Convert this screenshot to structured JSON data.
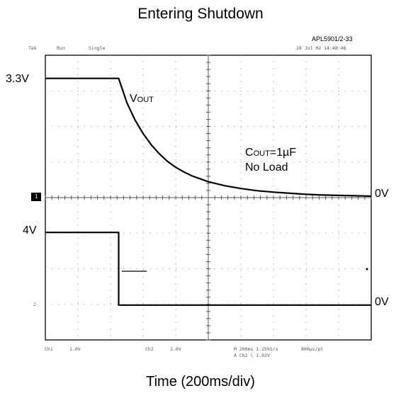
{
  "chart_data": {
    "type": "line",
    "title": "Entering Shutdown",
    "figure_id": "APL5901/2-33",
    "xlabel": "Time (200ms/div)",
    "x_unit": "ms",
    "x_per_div_ms": 200,
    "xlim": [
      0,
      2000
    ],
    "series": [
      {
        "name": "VOUT",
        "label_main": "V",
        "label_sub": "OUT",
        "level_label": "3.3V",
        "zero_label": "0V",
        "x": [
          0,
          200,
          450,
          450,
          500,
          550,
          600,
          650,
          700,
          750,
          800,
          850,
          900,
          1000,
          1100,
          1200,
          1300,
          1400,
          1500,
          1600,
          1700,
          1800,
          1900,
          2000
        ],
        "y": [
          3.3,
          3.3,
          3.3,
          3.3,
          2.63,
          2.15,
          1.77,
          1.46,
          1.21,
          1.0,
          0.84,
          0.71,
          0.6,
          0.44,
          0.33,
          0.25,
          0.19,
          0.15,
          0.12,
          0.09,
          0.07,
          0.06,
          0.05,
          0.04
        ],
        "ylim": [
          0,
          3.3
        ]
      },
      {
        "name": "EN",
        "level_label": "4V",
        "zero_label": "0V",
        "x": [
          0,
          450,
          450,
          2000
        ],
        "y": [
          4,
          4,
          0,
          0
        ],
        "ylim": [
          0,
          4
        ]
      }
    ],
    "annotation": {
      "line1_main": "C",
      "line1_sub": "OUT",
      "line1_rest": "=1µF",
      "line2": "No Load"
    },
    "scope_header": [
      "Tek",
      "Run",
      "Single",
      "28 Jul 02 14:48:48"
    ],
    "scope_footer": [
      "Ch1",
      "1.0V",
      "Ch2",
      "2.0V",
      "M 200ms 1.25kS/s",
      "800µs/pt",
      "A Ch2 \\ 1.92V"
    ],
    "ch1_marker": "1",
    "ch2_marker": "2",
    "grid": true
  }
}
